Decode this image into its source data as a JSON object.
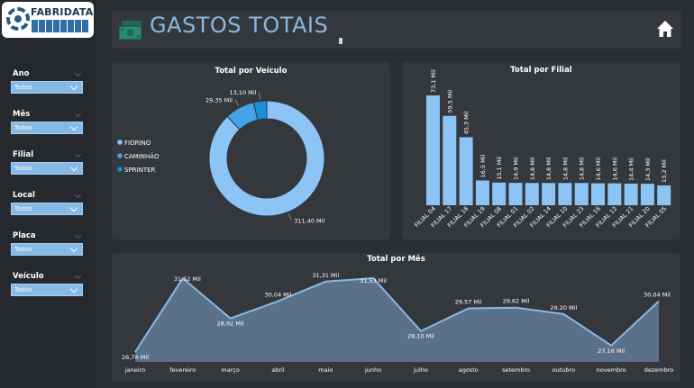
{
  "logo": {
    "text": "FABRIDATA"
  },
  "header": {
    "title": "GASTOS TOTAIS"
  },
  "filters": [
    {
      "label": "Ano",
      "value": "Todos"
    },
    {
      "label": "Mês",
      "value": "Todos"
    },
    {
      "label": "Filial",
      "value": "Todos"
    },
    {
      "label": "Local",
      "value": "Todos"
    },
    {
      "label": "Placa",
      "value": "Todos"
    },
    {
      "label": "Veículo",
      "value": "Todos"
    }
  ],
  "colors": {
    "accent": "#8ab8e2",
    "bar": "#8cc4f5",
    "area": "#5b7189",
    "background": "#2b2e33"
  },
  "chart_data": [
    {
      "type": "pie",
      "title": "Total por Veículo",
      "legend_position": "left",
      "slices": [
        {
          "name": "FIORINO",
          "value": 311.4,
          "label": "311,40 Mil",
          "color": "#8cc4f5"
        },
        {
          "name": "CAMINHÃO",
          "value": 29.35,
          "label": "29,35 Mil",
          "color": "#42a3e8"
        },
        {
          "name": "SPRINTER",
          "value": 13.1,
          "label": "13,10 Mil",
          "color": "#1a8ddd"
        }
      ]
    },
    {
      "type": "bar",
      "title": "Total por Filial",
      "categories": [
        "FILIAL 04",
        "FILIAL 17",
        "FILIAL 18",
        "FILIAL 19",
        "FILIAL 08",
        "FILIAL 01",
        "FILIAL 02",
        "FILIAL 14",
        "FILIAL 10",
        "FILIAL 23",
        "FILIAL 16",
        "FILIAL 12",
        "FILIAL 21",
        "FILIAL 20",
        "FILIAL 05"
      ],
      "values": [
        73.1,
        59.5,
        45.3,
        16.5,
        15.1,
        14.9,
        14.8,
        14.8,
        14.8,
        14.8,
        14.6,
        14.6,
        14.4,
        14.3,
        13.2
      ],
      "labels": [
        "73,1 Mil",
        "59,5 Mil",
        "45,3 Mil",
        "16,5 Mil",
        "15,1 Mil",
        "14,9 Mil",
        "14,8 Mil",
        "14,8 Mil",
        "14,8 Mil",
        "14,8 Mil",
        "14,6 Mil",
        "14,6 Mil",
        "14,4 Mil",
        "14,3 Mil",
        "13,2 Mil"
      ]
    },
    {
      "type": "area",
      "title": "Total por Mês",
      "categories": [
        "janeiro",
        "fevereiro",
        "março",
        "abril",
        "maio",
        "junho",
        "julho",
        "agosto",
        "setembro",
        "outubro",
        "novembro",
        "dezembro"
      ],
      "values": [
        26.74,
        31.52,
        28.92,
        30.04,
        31.31,
        31.53,
        28.1,
        29.57,
        29.62,
        29.2,
        27.16,
        30.04
      ],
      "labels": [
        "26,74 Mil",
        "31,52 Mil",
        "28,92 Mil",
        "30,04 Mil",
        "31,31 Mil",
        "31,53 Mil",
        "28,10 Mil",
        "29,57 Mil",
        "29,62 Mil",
        "29,20 Mil",
        "27,16 Mil",
        "30,04 Mil"
      ]
    }
  ]
}
